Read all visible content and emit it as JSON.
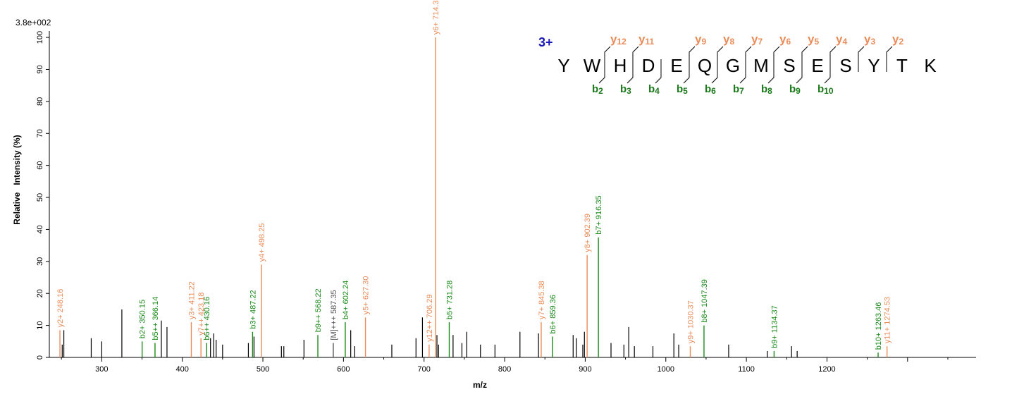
{
  "chart_data": {
    "type": "bar",
    "max_intensity_label": "3.8e+002",
    "xlabel": "m/z",
    "ylabel": "Relative   Intensity (%)",
    "xlim": [
      235,
      1385
    ],
    "ylim": [
      0,
      102
    ],
    "x_ticks": [
      300,
      400,
      500,
      600,
      700,
      800,
      900,
      1000,
      1100,
      1200
    ],
    "y_ticks": [
      0,
      10,
      20,
      30,
      40,
      50,
      60,
      70,
      80,
      90,
      100
    ],
    "colors": {
      "y": "#e98c5a",
      "b": "#1a8a1a",
      "other": "#000000",
      "precursor": "#555555"
    },
    "peaks": [
      {
        "mz": 248.16,
        "int": 8.5,
        "ion": "y",
        "label": "y2+ 248.16"
      },
      {
        "mz": 251,
        "int": 4,
        "ion": "other"
      },
      {
        "mz": 253,
        "int": 8.5,
        "ion": "other"
      },
      {
        "mz": 287,
        "int": 6,
        "ion": "other"
      },
      {
        "mz": 300,
        "int": 5,
        "ion": "other"
      },
      {
        "mz": 325,
        "int": 15,
        "ion": "other"
      },
      {
        "mz": 350.15,
        "int": 5,
        "ion": "b",
        "label": "b2+ 350.15"
      },
      {
        "mz": 366.14,
        "int": 4.5,
        "ion": "b",
        "label": "b5++ 366.14"
      },
      {
        "mz": 374,
        "int": 11.5,
        "ion": "other"
      },
      {
        "mz": 381,
        "int": 9.5,
        "ion": "other"
      },
      {
        "mz": 411.22,
        "int": 11,
        "ion": "y",
        "label": "y3+ 411.22"
      },
      {
        "mz": 423.18,
        "int": 6,
        "ion": "y",
        "label": "y7++ 423.18"
      },
      {
        "mz": 430.16,
        "int": 4.5,
        "ion": "b",
        "label": "b6++ 430.16"
      },
      {
        "mz": 435,
        "int": 6,
        "ion": "other"
      },
      {
        "mz": 439,
        "int": 7.5,
        "ion": "other"
      },
      {
        "mz": 442,
        "int": 5.5,
        "ion": "other"
      },
      {
        "mz": 450,
        "int": 4,
        "ion": "other"
      },
      {
        "mz": 482,
        "int": 4.5,
        "ion": "other"
      },
      {
        "mz": 487.22,
        "int": 8,
        "ion": "b",
        "label": "b3+ 487.22"
      },
      {
        "mz": 489,
        "int": 6.5,
        "ion": "other"
      },
      {
        "mz": 498.25,
        "int": 29,
        "ion": "y",
        "label": "y4+ 498.25"
      },
      {
        "mz": 523,
        "int": 3.5,
        "ion": "other"
      },
      {
        "mz": 526,
        "int": 3.5,
        "ion": "other"
      },
      {
        "mz": 551,
        "int": 5.5,
        "ion": "other"
      },
      {
        "mz": 568.22,
        "int": 7,
        "ion": "b",
        "label": "b9++ 568.22"
      },
      {
        "mz": 587.35,
        "int": 4.5,
        "ion": "precursor",
        "label": "[M]+++ 587.35"
      },
      {
        "mz": 602.24,
        "int": 11,
        "ion": "b",
        "label": "b4+ 602.24"
      },
      {
        "mz": 609,
        "int": 8.5,
        "ion": "other"
      },
      {
        "mz": 614,
        "int": 3.5,
        "ion": "other"
      },
      {
        "mz": 627.3,
        "int": 12.5,
        "ion": "y",
        "label": "y5+ 627.30"
      },
      {
        "mz": 660,
        "int": 4,
        "ion": "other"
      },
      {
        "mz": 690,
        "int": 6,
        "ion": "other"
      },
      {
        "mz": 698,
        "int": 12.5,
        "ion": "other"
      },
      {
        "mz": 706.29,
        "int": 4,
        "ion": "y",
        "label": "y12++ 706.29"
      },
      {
        "mz": 714.33,
        "int": 100,
        "ion": "y",
        "label": "y6+ 714.33"
      },
      {
        "mz": 716,
        "int": 7,
        "ion": "other"
      },
      {
        "mz": 718,
        "int": 4,
        "ion": "other"
      },
      {
        "mz": 731.28,
        "int": 11,
        "ion": "b",
        "label": "b5+ 731.28"
      },
      {
        "mz": 736,
        "int": 7,
        "ion": "other"
      },
      {
        "mz": 747,
        "int": 4.5,
        "ion": "other"
      },
      {
        "mz": 753,
        "int": 8,
        "ion": "other"
      },
      {
        "mz": 770,
        "int": 4,
        "ion": "other"
      },
      {
        "mz": 788,
        "int": 4,
        "ion": "other"
      },
      {
        "mz": 819,
        "int": 8,
        "ion": "other"
      },
      {
        "mz": 845.38,
        "int": 11,
        "ion": "y",
        "label": "y7+ 845.38"
      },
      {
        "mz": 842,
        "int": 7.5,
        "ion": "other"
      },
      {
        "mz": 859.36,
        "int": 6.5,
        "ion": "b",
        "label": "b6+ 859.36"
      },
      {
        "mz": 885,
        "int": 7,
        "ion": "other"
      },
      {
        "mz": 889,
        "int": 6,
        "ion": "other"
      },
      {
        "mz": 897,
        "int": 4,
        "ion": "other"
      },
      {
        "mz": 899,
        "int": 8,
        "ion": "other"
      },
      {
        "mz": 902.39,
        "int": 32,
        "ion": "y",
        "label": "y8+ 902.39"
      },
      {
        "mz": 916.35,
        "int": 37.5,
        "ion": "b",
        "label": "b7+ 916.35"
      },
      {
        "mz": 932,
        "int": 4.5,
        "ion": "other"
      },
      {
        "mz": 948,
        "int": 4,
        "ion": "other"
      },
      {
        "mz": 954,
        "int": 9.5,
        "ion": "other"
      },
      {
        "mz": 961,
        "int": 3.5,
        "ion": "other"
      },
      {
        "mz": 984,
        "int": 3.5,
        "ion": "other"
      },
      {
        "mz": 1010,
        "int": 7.5,
        "ion": "other"
      },
      {
        "mz": 1016,
        "int": 4,
        "ion": "other"
      },
      {
        "mz": 1030.37,
        "int": 3.5,
        "ion": "y",
        "label": "y9+ 1030.37"
      },
      {
        "mz": 1047.39,
        "int": 10,
        "ion": "b",
        "label": "b8+ 1047.39"
      },
      {
        "mz": 1078,
        "int": 4,
        "ion": "other"
      },
      {
        "mz": 1126,
        "int": 2,
        "ion": "other"
      },
      {
        "mz": 1134.37,
        "int": 2,
        "ion": "b",
        "label": "b9+ 1134.37"
      },
      {
        "mz": 1156,
        "int": 3.5,
        "ion": "other"
      },
      {
        "mz": 1163,
        "int": 2,
        "ion": "other"
      },
      {
        "mz": 1263.46,
        "int": 1.5,
        "ion": "b",
        "label": "b10+ 1263.46"
      },
      {
        "mz": 1274.53,
        "int": 3.5,
        "ion": "y",
        "label": "y11+ 1274.53"
      }
    ]
  },
  "peptide": {
    "charge": "3+",
    "sequence": [
      "Y",
      "W",
      "H",
      "D",
      "E",
      "Q",
      "G",
      "M",
      "S",
      "E",
      "S",
      "Y",
      "T",
      "K"
    ],
    "y_ions": [
      {
        "label": "y",
        "sub": "12",
        "cut": 2
      },
      {
        "label": "y",
        "sub": "11",
        "cut": 3
      },
      {
        "label": "y",
        "sub": "9",
        "cut": 5
      },
      {
        "label": "y",
        "sub": "8",
        "cut": 6
      },
      {
        "label": "y",
        "sub": "7",
        "cut": 7
      },
      {
        "label": "y",
        "sub": "6",
        "cut": 8
      },
      {
        "label": "y",
        "sub": "5",
        "cut": 9
      },
      {
        "label": "y",
        "sub": "4",
        "cut": 10
      },
      {
        "label": "y",
        "sub": "3",
        "cut": 11
      },
      {
        "label": "y",
        "sub": "2",
        "cut": 12
      }
    ],
    "b_ions": [
      {
        "label": "b",
        "sub": "2",
        "cut": 2
      },
      {
        "label": "b",
        "sub": "3",
        "cut": 3
      },
      {
        "label": "b",
        "sub": "4",
        "cut": 4
      },
      {
        "label": "b",
        "sub": "5",
        "cut": 5
      },
      {
        "label": "b",
        "sub": "6",
        "cut": 6
      },
      {
        "label": "b",
        "sub": "7",
        "cut": 7
      },
      {
        "label": "b",
        "sub": "8",
        "cut": 8
      },
      {
        "label": "b",
        "sub": "9",
        "cut": 9
      },
      {
        "label": "b",
        "sub": "10",
        "cut": 10
      }
    ]
  }
}
